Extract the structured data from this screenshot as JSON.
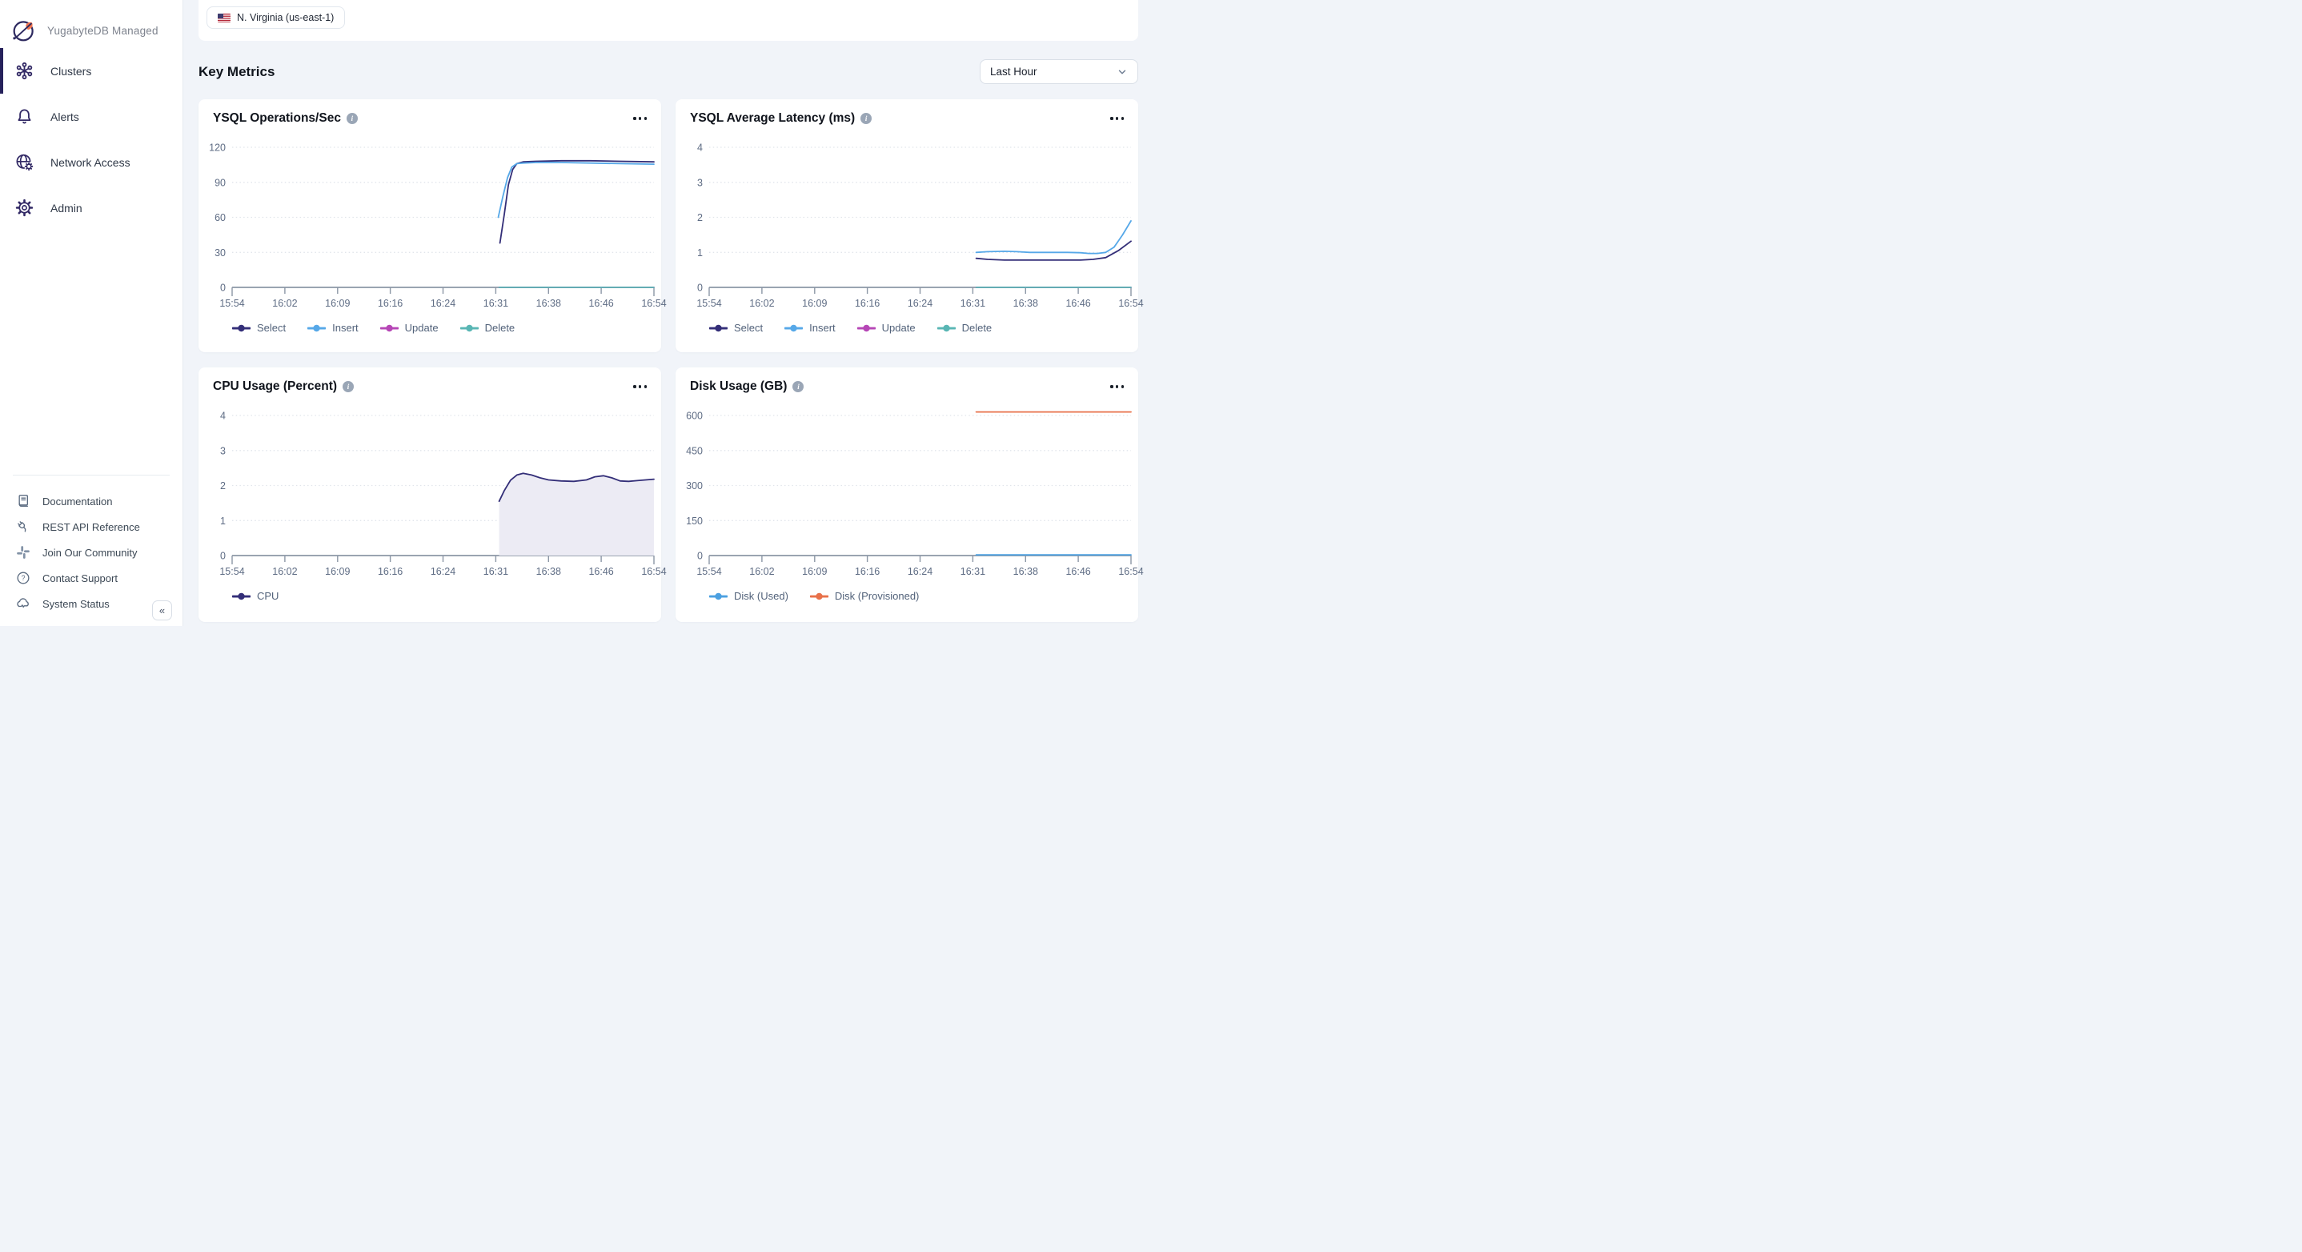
{
  "app": {
    "name": "YugabyteDB Managed"
  },
  "sidebar": {
    "items": [
      {
        "label": "Clusters",
        "icon": "clusters-icon",
        "active": true
      },
      {
        "label": "Alerts",
        "icon": "bell-icon",
        "active": false
      },
      {
        "label": "Network Access",
        "icon": "globe-gear-icon",
        "active": false
      },
      {
        "label": "Admin",
        "icon": "gear-icon",
        "active": false
      }
    ],
    "footer_items": [
      {
        "label": "Documentation",
        "icon": "book-icon"
      },
      {
        "label": "REST API Reference",
        "icon": "plug-icon"
      },
      {
        "label": "Join Our Community",
        "icon": "slack-icon"
      },
      {
        "label": "Contact Support",
        "icon": "help-icon"
      },
      {
        "label": "System Status",
        "icon": "cloud-status-icon"
      }
    ],
    "collapse_glyph": "«"
  },
  "topbar": {
    "region": "N. Virginia (us-east-1)",
    "flag_icon": "us-flag-icon"
  },
  "metrics_header": {
    "title": "Key Metrics",
    "time_range": "Last Hour"
  },
  "colors": {
    "select": "#332E78",
    "insert": "#56A8E8",
    "update": "#B646B6",
    "delete": "#59B6B4",
    "cpu": "#332E78",
    "cpu_fill": "#ECEBF4",
    "disk_used": "#4BA0E1",
    "disk_provisioned": "#E8714A",
    "accent_navy": "#322965",
    "background": "#F1F4F9"
  },
  "chart_data": [
    {
      "type": "line",
      "title": "YSQL Operations/Sec",
      "x_ticks": [
        "15:54",
        "16:02",
        "16:09",
        "16:16",
        "16:24",
        "16:31",
        "16:38",
        "16:46",
        "16:54"
      ],
      "yticks": [
        0,
        30,
        60,
        90,
        120
      ],
      "ylim": [
        0,
        120
      ],
      "legend_position": "bottom",
      "grid": "dotted-horizontal",
      "series": [
        {
          "name": "Select",
          "color": "#332E78",
          "points": [
            [
              0.635,
              38
            ],
            [
              0.645,
              62
            ],
            [
              0.655,
              88
            ],
            [
              0.665,
              101
            ],
            [
              0.675,
              106
            ],
            [
              0.69,
              107.5
            ],
            [
              0.72,
              108
            ],
            [
              0.78,
              108.5
            ],
            [
              0.85,
              108.5
            ],
            [
              0.92,
              108
            ],
            [
              1,
              107.5
            ]
          ]
        },
        {
          "name": "Insert",
          "color": "#56A8E8",
          "points": [
            [
              0.631,
              60
            ],
            [
              0.642,
              78
            ],
            [
              0.653,
              94
            ],
            [
              0.663,
              103
            ],
            [
              0.675,
              106
            ],
            [
              0.69,
              106.5
            ],
            [
              0.72,
              107
            ],
            [
              0.78,
              107
            ],
            [
              0.85,
              106.5
            ],
            [
              0.92,
              106
            ],
            [
              1,
              105.5
            ]
          ]
        },
        {
          "name": "Update",
          "color": "#B646B6",
          "points": [
            [
              0.633,
              0
            ],
            [
              1,
              0
            ]
          ]
        },
        {
          "name": "Delete",
          "color": "#59B6B4",
          "points": [
            [
              0.633,
              0
            ],
            [
              1,
              0
            ]
          ]
        }
      ]
    },
    {
      "type": "line",
      "title": "YSQL Average Latency (ms)",
      "x_ticks": [
        "15:54",
        "16:02",
        "16:09",
        "16:16",
        "16:24",
        "16:31",
        "16:38",
        "16:46",
        "16:54"
      ],
      "yticks": [
        0,
        1,
        2,
        3,
        4
      ],
      "ylim": [
        0,
        4
      ],
      "legend_position": "bottom",
      "grid": "dotted-horizontal",
      "series": [
        {
          "name": "Select",
          "color": "#332E78",
          "points": [
            [
              0.633,
              0.83
            ],
            [
              0.66,
              0.8
            ],
            [
              0.7,
              0.78
            ],
            [
              0.75,
              0.78
            ],
            [
              0.8,
              0.78
            ],
            [
              0.85,
              0.78
            ],
            [
              0.88,
              0.78
            ],
            [
              0.91,
              0.8
            ],
            [
              0.94,
              0.85
            ],
            [
              0.97,
              1.05
            ],
            [
              1,
              1.32
            ]
          ]
        },
        {
          "name": "Insert",
          "color": "#56A8E8",
          "points": [
            [
              0.633,
              1.0
            ],
            [
              0.66,
              1.02
            ],
            [
              0.7,
              1.03
            ],
            [
              0.73,
              1.02
            ],
            [
              0.76,
              1.0
            ],
            [
              0.8,
              1.0
            ],
            [
              0.85,
              1.0
            ],
            [
              0.88,
              0.99
            ],
            [
              0.9,
              0.97
            ],
            [
              0.92,
              0.97
            ],
            [
              0.94,
              1.0
            ],
            [
              0.96,
              1.15
            ],
            [
              0.98,
              1.5
            ],
            [
              1,
              1.9
            ]
          ]
        },
        {
          "name": "Update",
          "color": "#B646B6",
          "points": [
            [
              0.633,
              0
            ],
            [
              1,
              0
            ]
          ]
        },
        {
          "name": "Delete",
          "color": "#59B6B4",
          "points": [
            [
              0.633,
              0
            ],
            [
              1,
              0
            ]
          ]
        }
      ]
    },
    {
      "type": "area",
      "title": "CPU Usage (Percent)",
      "x_ticks": [
        "15:54",
        "16:02",
        "16:09",
        "16:16",
        "16:24",
        "16:31",
        "16:38",
        "16:46",
        "16:54"
      ],
      "yticks": [
        0,
        1,
        2,
        3,
        4
      ],
      "ylim": [
        0,
        4
      ],
      "legend_position": "bottom",
      "grid": "dotted-horizontal",
      "series": [
        {
          "name": "CPU",
          "color": "#332E78",
          "fill": "#ECEBF4",
          "points": [
            [
              0.633,
              1.55
            ],
            [
              0.645,
              1.85
            ],
            [
              0.66,
              2.15
            ],
            [
              0.675,
              2.3
            ],
            [
              0.69,
              2.35
            ],
            [
              0.71,
              2.3
            ],
            [
              0.73,
              2.22
            ],
            [
              0.75,
              2.16
            ],
            [
              0.78,
              2.13
            ],
            [
              0.81,
              2.12
            ],
            [
              0.84,
              2.16
            ],
            [
              0.86,
              2.25
            ],
            [
              0.88,
              2.28
            ],
            [
              0.9,
              2.22
            ],
            [
              0.92,
              2.13
            ],
            [
              0.94,
              2.12
            ],
            [
              0.96,
              2.14
            ],
            [
              0.98,
              2.16
            ],
            [
              1,
              2.18
            ]
          ]
        }
      ]
    },
    {
      "type": "line",
      "title": "Disk Usage (GB)",
      "x_ticks": [
        "15:54",
        "16:02",
        "16:09",
        "16:16",
        "16:24",
        "16:31",
        "16:38",
        "16:46",
        "16:54"
      ],
      "yticks": [
        0,
        150,
        300,
        450,
        600
      ],
      "ylim": [
        0,
        600
      ],
      "legend_position": "bottom",
      "grid": "dotted-horizontal",
      "series": [
        {
          "name": "Disk (Used)",
          "color": "#4BA0E1",
          "points": [
            [
              0.633,
              3
            ],
            [
              1,
              3
            ]
          ]
        },
        {
          "name": "Disk (Provisioned)",
          "color": "#E8714A",
          "points": [
            [
              0.633,
              615
            ],
            [
              1,
              615
            ]
          ]
        }
      ]
    }
  ]
}
